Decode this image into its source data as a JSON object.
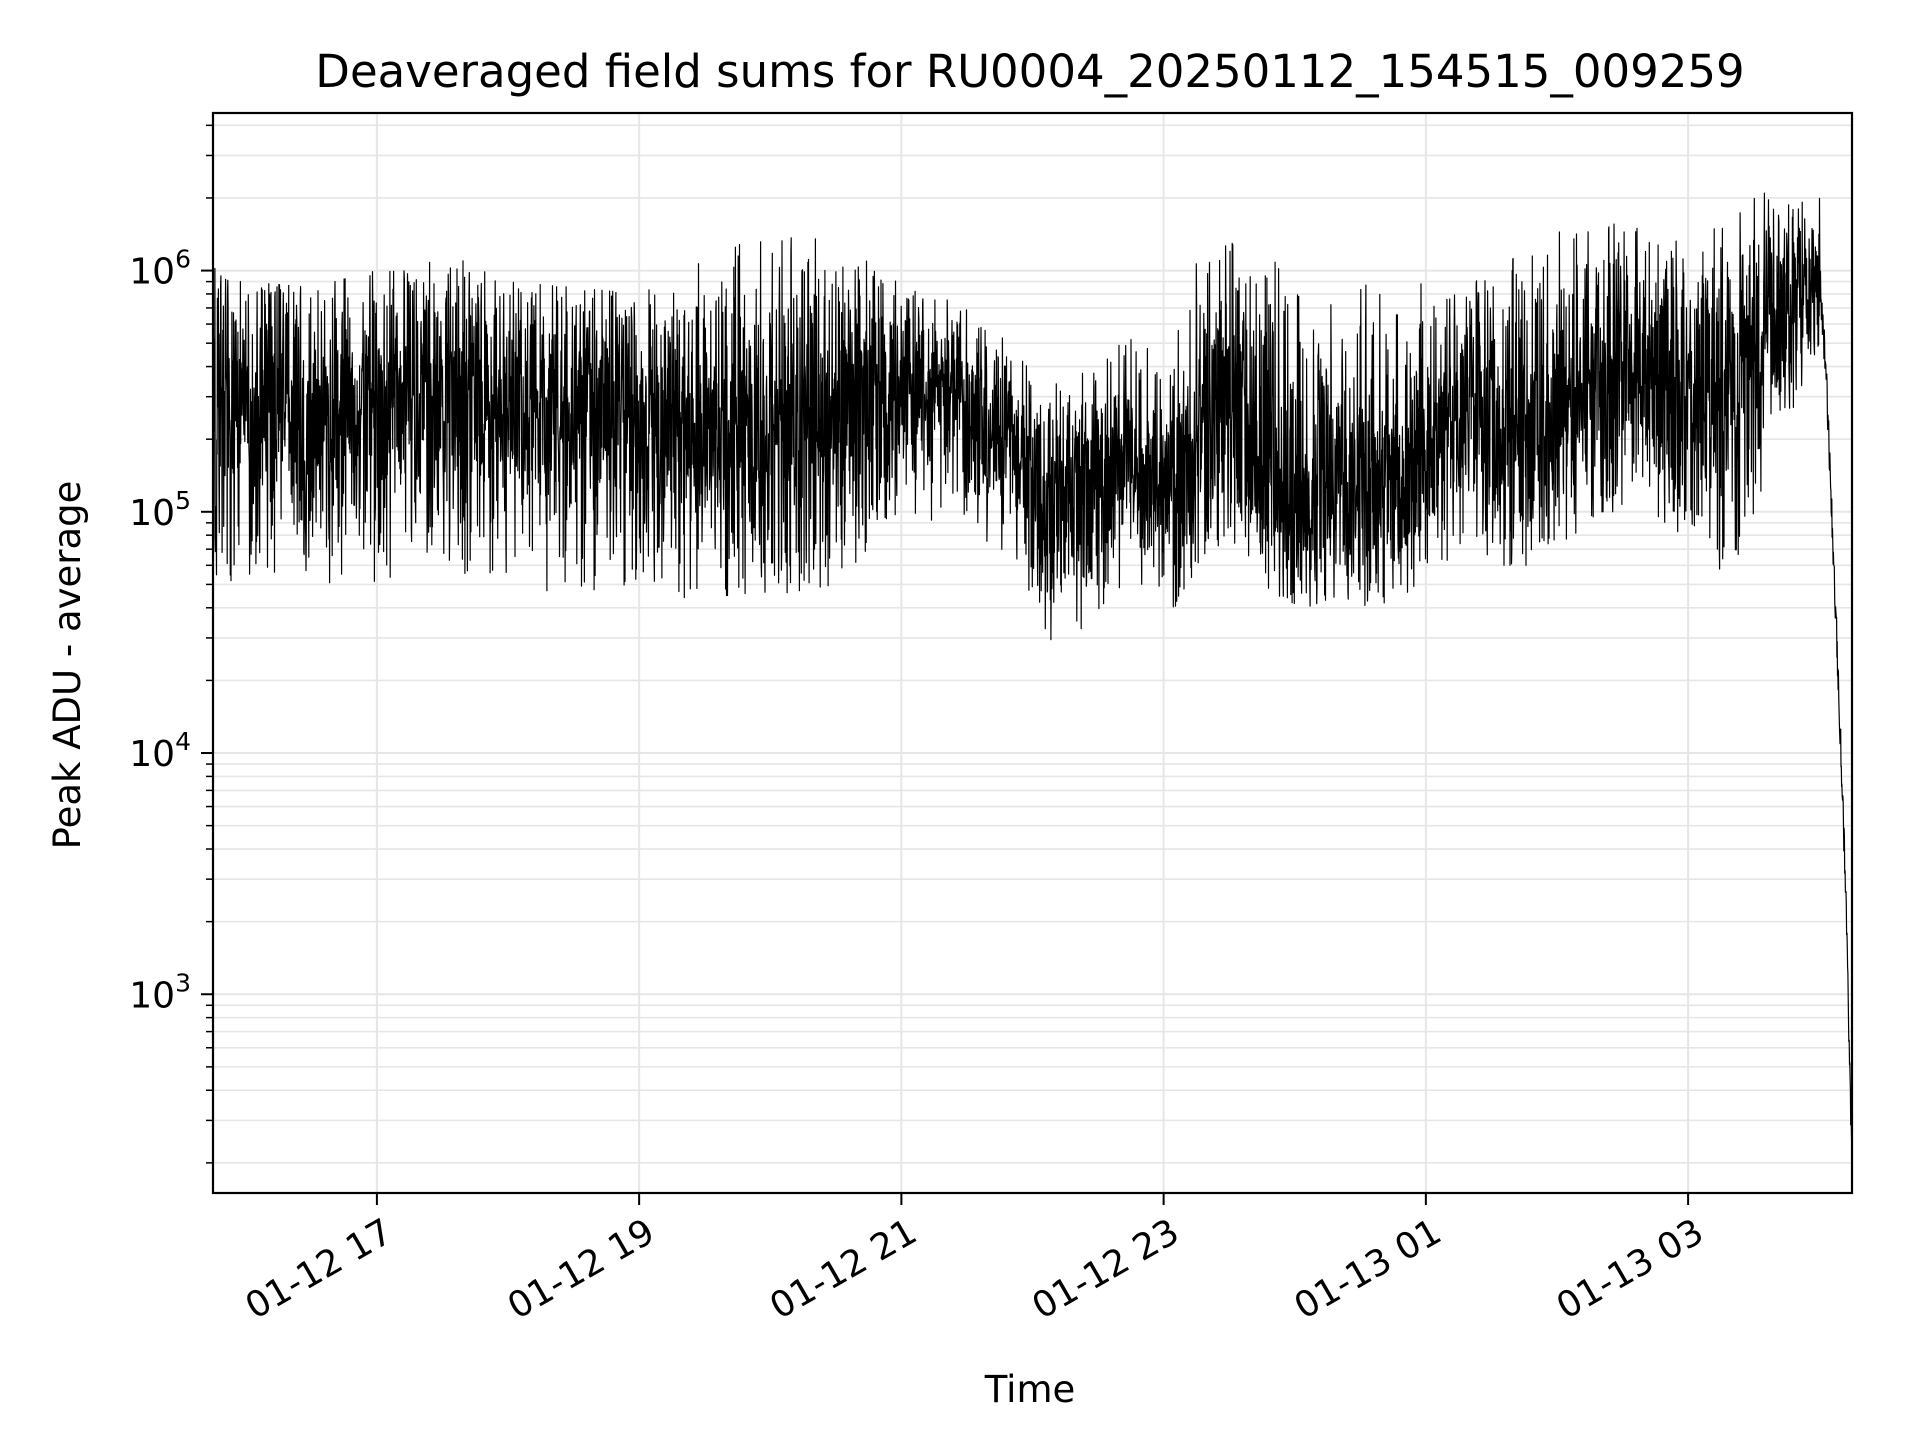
{
  "chart_data": {
    "type": "line",
    "title": "Deaveraged field sums for RU0004_20250112_154515_009259",
    "xlabel": "Time",
    "ylabel": "Peak ADU - average",
    "y_scale": "log",
    "ylim": [
      150,
      4500000
    ],
    "xlim": [
      "01-12 15:45",
      "01-13 04:15"
    ],
    "grid": true,
    "line_color": "#000000",
    "grid_color": "#e6e6e6",
    "x_ticks": [
      {
        "label": "01-12 17",
        "time": "01-12 17:00"
      },
      {
        "label": "01-12 19",
        "time": "01-12 19:00"
      },
      {
        "label": "01-12 21",
        "time": "01-12 21:00"
      },
      {
        "label": "01-12 23",
        "time": "01-12 23:00"
      },
      {
        "label": "01-13 01",
        "time": "01-13 01:00"
      },
      {
        "label": "01-13 03",
        "time": "01-13 03:00"
      }
    ],
    "y_ticks": [
      {
        "base": "10",
        "exp": "3",
        "value": 1000
      },
      {
        "base": "10",
        "exp": "4",
        "value": 10000
      },
      {
        "base": "10",
        "exp": "5",
        "value": 100000
      },
      {
        "base": "10",
        "exp": "6",
        "value": 1000000
      }
    ],
    "series": [
      {
        "time": [
          "01-12 15:45",
          "01-12 16:00",
          "01-12 16:30",
          "01-12 17:00",
          "01-12 17:30",
          "01-12 18:00",
          "01-12 18:30",
          "01-12 19:00",
          "01-12 19:30",
          "01-12 20:00",
          "01-12 20:30",
          "01-12 21:00",
          "01-12 21:30",
          "01-12 21:50",
          "01-12 22:05",
          "01-12 22:20",
          "01-12 22:35",
          "01-12 22:50",
          "01-12 23:05",
          "01-12 23:20",
          "01-12 23:35",
          "01-12 23:50",
          "01-13 00:05",
          "01-13 00:20",
          "01-13 00:35",
          "01-13 00:50",
          "01-13 01:05",
          "01-13 01:20",
          "01-13 01:35",
          "01-13 01:50",
          "01-13 02:05",
          "01-13 02:20",
          "01-13 02:35",
          "01-13 02:50",
          "01-13 03:05",
          "01-13 03:20",
          "01-13 03:35",
          "01-13 03:50",
          "01-13 04:00",
          "01-13 04:03",
          "01-13 04:08",
          "01-13 04:12",
          "01-13 04:15"
        ],
        "center": [
          300000,
          280000,
          260000,
          270000,
          300000,
          280000,
          260000,
          250000,
          240000,
          230000,
          240000,
          330000,
          280000,
          200000,
          100000,
          110000,
          150000,
          160000,
          120000,
          250000,
          280000,
          150000,
          110000,
          130000,
          120000,
          140000,
          230000,
          260000,
          200000,
          230000,
          280000,
          380000,
          400000,
          380000,
          300000,
          340000,
          580000,
          800000,
          900000,
          400000,
          30000,
          3000,
          200
        ],
        "low": [
          50000,
          50000,
          50000,
          50000,
          55000,
          50000,
          45000,
          40000,
          45000,
          45000,
          50000,
          100000,
          80000,
          60000,
          30000,
          28000,
          45000,
          50000,
          40000,
          70000,
          75000,
          45000,
          40000,
          45000,
          40000,
          45000,
          60000,
          70000,
          60000,
          60000,
          70000,
          100000,
          100000,
          90000,
          60000,
          55000,
          130000,
          300000,
          500000,
          150000,
          20000,
          2000,
          150
        ],
        "high": [
          1200000,
          900000,
          850000,
          1000000,
          1200000,
          900000,
          850000,
          800000,
          1100000,
          1500000,
          1300000,
          900000,
          700000,
          500000,
          400000,
          350000,
          500000,
          600000,
          600000,
          1600000,
          1400000,
          1200000,
          700000,
          900000,
          900000,
          800000,
          1000000,
          1000000,
          1200000,
          1300000,
          1500000,
          1700000,
          1600000,
          1400000,
          1400000,
          1600000,
          2200000,
          2800000,
          2500000,
          600000,
          50000,
          5000,
          250
        ]
      }
    ]
  }
}
